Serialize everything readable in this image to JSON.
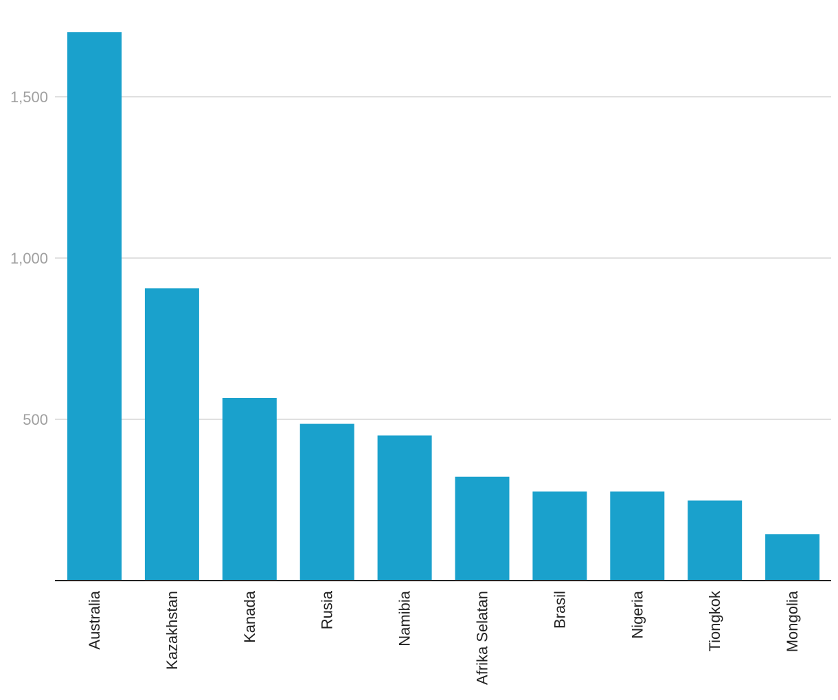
{
  "chart_data": {
    "type": "bar",
    "title": "",
    "xlabel": "",
    "ylabel": "",
    "categories": [
      "Australia",
      "Kazakhstan",
      "Kanada",
      "Rusia",
      "Namibia",
      "Afrika Selatan",
      "Brasil",
      "Nigeria",
      "Tiongkok",
      "Mongolia"
    ],
    "values": [
      1700,
      906,
      566,
      486,
      450,
      322,
      276,
      276,
      248,
      144
    ],
    "ylim": [
      0,
      1700
    ],
    "yticks": [
      500,
      1000,
      1500
    ],
    "ytick_labels": [
      "500",
      "1,000",
      "1,500"
    ],
    "grid": true,
    "bar_color": "#1aa1cc"
  }
}
